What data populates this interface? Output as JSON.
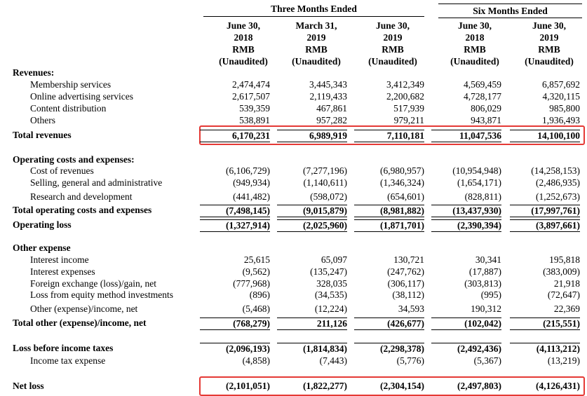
{
  "table": {
    "groups": [
      "Three Months Ended",
      "Six Months Ended"
    ],
    "columns": [
      [
        "June 30,",
        "2018",
        "RMB",
        "(Unaudited)"
      ],
      [
        "March 31,",
        "2019",
        "RMB",
        "(Unaudited)"
      ],
      [
        "June 30,",
        "2019",
        "RMB",
        "(Unaudited)"
      ],
      [
        "June 30,",
        "2018",
        "RMB",
        "(Unaudited)"
      ],
      [
        "June 30,",
        "2019",
        "RMB",
        "(Unaudited)"
      ]
    ],
    "sections": [
      {
        "heading": "Revenues:",
        "items": [
          {
            "label": "Membership services",
            "values": [
              "2,474,474",
              "3,445,343",
              "3,412,349",
              "4,569,459",
              "6,857,692"
            ]
          },
          {
            "label": "Online advertising services",
            "values": [
              "2,617,507",
              "2,119,433",
              "2,200,682",
              "4,728,177",
              "4,320,115"
            ]
          },
          {
            "label": "Content distribution",
            "values": [
              "539,359",
              "467,861",
              "517,939",
              "806,029",
              "985,800"
            ]
          },
          {
            "label": "Others",
            "values": [
              "538,891",
              "957,282",
              "979,211",
              "943,871",
              "1,936,493"
            ]
          }
        ],
        "totals": [
          {
            "label": "Total revenues",
            "values": [
              "6,170,231",
              "6,989,919",
              "7,110,181",
              "11,047,536",
              "14,100,100"
            ]
          }
        ]
      },
      {
        "heading": "Operating costs and expenses:",
        "items": [
          {
            "label": "Cost of revenues",
            "values": [
              "(6,106,729)",
              "(7,277,196)",
              "(6,980,957)",
              "(10,954,948)",
              "(14,258,153)"
            ]
          },
          {
            "label": "Selling, general and administrative",
            "values": [
              "(949,934)",
              "(1,140,611)",
              "(1,346,324)",
              "(1,654,171)",
              "(2,486,935)"
            ]
          },
          {
            "label": "Research and development",
            "values": [
              "(441,482)",
              "(598,072)",
              "(654,601)",
              "(828,811)",
              "(1,252,673)"
            ]
          }
        ],
        "totals": [
          {
            "label": "Total operating costs and expenses",
            "values": [
              "(7,498,145)",
              "(9,015,879)",
              "(8,981,882)",
              "(13,437,930)",
              "(17,997,761)"
            ]
          },
          {
            "label": "Operating loss",
            "values": [
              "(1,327,914)",
              "(2,025,960)",
              "(1,871,701)",
              "(2,390,394)",
              "(3,897,661)"
            ]
          }
        ]
      },
      {
        "heading": "Other expense",
        "items": [
          {
            "label": "Interest income",
            "values": [
              "25,615",
              "65,097",
              "130,721",
              "30,341",
              "195,818"
            ]
          },
          {
            "label": "Interest expenses",
            "values": [
              "(9,562)",
              "(135,247)",
              "(247,762)",
              "(17,887)",
              "(383,009)"
            ]
          },
          {
            "label": "Foreign exchange (loss)/gain, net",
            "values": [
              "(777,968)",
              "328,035",
              "(306,117)",
              "(303,813)",
              "21,918"
            ]
          },
          {
            "label": "Loss from equity method investments",
            "values": [
              "(896)",
              "(34,535)",
              "(38,112)",
              "(995)",
              "(72,647)"
            ]
          },
          {
            "label": "Other (expense)/income, net",
            "values": [
              "(5,468)",
              "(12,224)",
              "34,593",
              "190,312",
              "22,369"
            ]
          }
        ],
        "totals": [
          {
            "label": "Total other (expense)/income, net",
            "values": [
              "(768,279)",
              "211,126",
              "(426,677)",
              "(102,042)",
              "(215,551)"
            ]
          }
        ]
      },
      {
        "heading": {
          "label": "Loss before income taxes",
          "values": [
            "(2,096,193)",
            "(1,814,834)",
            "(2,298,378)",
            "(2,492,436)",
            "(4,113,212)"
          ]
        },
        "items": [
          {
            "label": "Income tax expense",
            "values": [
              "(4,858)",
              "(7,443)",
              "(5,776)",
              "(5,367)",
              "(13,219)"
            ]
          }
        ]
      },
      {
        "totals": [
          {
            "label": "Net loss",
            "values": [
              "(2,101,051)",
              "(1,822,277)",
              "(2,304,154)",
              "(2,497,803)",
              "(4,126,431)"
            ]
          }
        ]
      }
    ]
  }
}
